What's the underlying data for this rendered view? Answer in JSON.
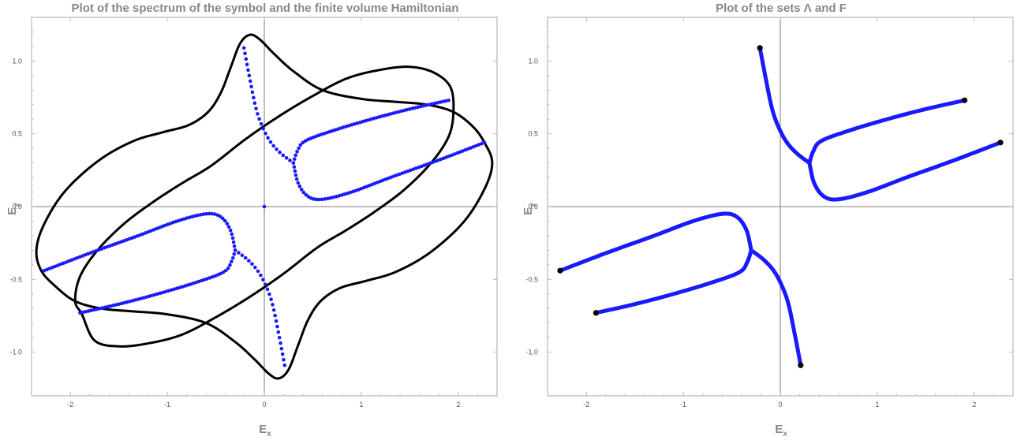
{
  "chart_data": [
    {
      "type": "scatter",
      "title": "Plot of the spectrum of the symbol and the finite volume Hamiltonian",
      "xlabel": "E",
      "xlabel_sub": "x",
      "ylabel": "E",
      "ylabel_sub": "y",
      "xlim": [
        -2.4,
        2.4
      ],
      "ylim": [
        -1.3,
        1.3
      ],
      "xticks": [
        {
          "v": -2,
          "label": "-2"
        },
        {
          "v": -1,
          "label": "-1"
        },
        {
          "v": 0,
          "label": "0"
        },
        {
          "v": 1,
          "label": "1"
        },
        {
          "v": 2,
          "label": "2"
        }
      ],
      "yticks": [
        {
          "v": -1,
          "label": "-1.0"
        },
        {
          "v": -0.5,
          "label": "-0.5"
        },
        {
          "v": 0,
          "label": "0.0"
        },
        {
          "v": 0.5,
          "label": "0.5"
        },
        {
          "v": 1,
          "label": "1.0"
        }
      ],
      "grid": false,
      "colors": {
        "curve": "#000000",
        "points": "#1a1aff"
      },
      "symbol_curve": {
        "description_note": "closed curve, spectrum of the symbol",
        "points": [
          [
            2.27,
            0.44
          ],
          [
            2.15,
            0.55
          ],
          [
            1.95,
            0.65
          ],
          [
            1.68,
            0.7
          ],
          [
            1.35,
            0.72
          ],
          [
            1.0,
            0.74
          ],
          [
            0.6,
            0.8
          ],
          [
            0.3,
            0.93
          ],
          [
            0.1,
            1.05
          ],
          [
            -0.05,
            1.15
          ],
          [
            -0.15,
            1.18
          ],
          [
            -0.25,
            1.12
          ],
          [
            -0.35,
            0.95
          ],
          [
            -0.45,
            0.78
          ],
          [
            -0.58,
            0.65
          ],
          [
            -0.78,
            0.56
          ],
          [
            -1.05,
            0.51
          ],
          [
            -1.35,
            0.45
          ],
          [
            -1.7,
            0.32
          ],
          [
            -2.05,
            0.11
          ],
          [
            -2.27,
            -0.12
          ],
          [
            -2.35,
            -0.3
          ],
          [
            -2.3,
            -0.44
          ],
          [
            -2.15,
            -0.55
          ],
          [
            -1.95,
            -0.65
          ],
          [
            -1.68,
            -0.7
          ],
          [
            -1.35,
            -0.72
          ],
          [
            -1.0,
            -0.74
          ],
          [
            -0.6,
            -0.8
          ],
          [
            -0.3,
            -0.93
          ],
          [
            -0.1,
            -1.05
          ],
          [
            0.05,
            -1.15
          ],
          [
            0.15,
            -1.18
          ],
          [
            0.25,
            -1.12
          ],
          [
            0.35,
            -0.95
          ],
          [
            0.45,
            -0.78
          ],
          [
            0.58,
            -0.65
          ],
          [
            0.78,
            -0.56
          ],
          [
            1.05,
            -0.51
          ],
          [
            1.35,
            -0.45
          ],
          [
            1.7,
            -0.32
          ],
          [
            2.05,
            -0.11
          ],
          [
            2.27,
            0.12
          ],
          [
            2.35,
            0.3
          ],
          [
            2.27,
            0.44
          ]
        ]
      },
      "hamiltonian_curve": {
        "description_note": "closed curve, finite volume Hamiltonian",
        "points": [
          [
            -1.88,
            -0.74
          ],
          [
            -1.95,
            -0.65
          ],
          [
            -1.9,
            -0.48
          ],
          [
            -1.72,
            -0.3
          ],
          [
            -1.45,
            -0.12
          ],
          [
            -1.15,
            0.03
          ],
          [
            -0.85,
            0.16
          ],
          [
            -0.55,
            0.28
          ],
          [
            -0.2,
            0.46
          ],
          [
            0.15,
            0.62
          ],
          [
            0.5,
            0.76
          ],
          [
            0.85,
            0.88
          ],
          [
            1.2,
            0.94
          ],
          [
            1.5,
            0.96
          ],
          [
            1.75,
            0.92
          ],
          [
            1.92,
            0.82
          ],
          [
            1.95,
            0.65
          ],
          [
            1.9,
            0.48
          ],
          [
            1.72,
            0.3
          ],
          [
            1.45,
            0.12
          ],
          [
            1.15,
            -0.03
          ],
          [
            0.85,
            -0.16
          ],
          [
            0.55,
            -0.28
          ],
          [
            0.2,
            -0.46
          ],
          [
            -0.15,
            -0.62
          ],
          [
            -0.5,
            -0.76
          ],
          [
            -0.85,
            -0.88
          ],
          [
            -1.2,
            -0.94
          ],
          [
            -1.5,
            -0.96
          ],
          [
            -1.75,
            -0.92
          ],
          [
            -1.88,
            -0.74
          ]
        ]
      },
      "spectrum_points": {
        "branches": [
          [
            [
              -0.21,
              1.09
            ],
            [
              -0.15,
              0.88
            ],
            [
              -0.08,
              0.66
            ],
            [
              0.0,
              0.52
            ],
            [
              0.08,
              0.43
            ],
            [
              0.18,
              0.36
            ],
            [
              0.3,
              0.3
            ]
          ],
          [
            [
              0.3,
              0.3
            ],
            [
              0.34,
              0.38
            ],
            [
              0.42,
              0.45
            ],
            [
              0.7,
              0.52
            ],
            [
              1.1,
              0.6
            ],
            [
              1.5,
              0.67
            ],
            [
              1.9,
              0.73
            ]
          ],
          [
            [
              0.3,
              0.3
            ],
            [
              0.35,
              0.16
            ],
            [
              0.45,
              0.07
            ],
            [
              0.6,
              0.05
            ],
            [
              0.9,
              0.1
            ],
            [
              1.3,
              0.2
            ],
            [
              1.8,
              0.32
            ],
            [
              2.27,
              0.44
            ]
          ],
          [
            [
              0.21,
              -1.09
            ],
            [
              0.15,
              -0.88
            ],
            [
              0.08,
              -0.66
            ],
            [
              0.0,
              -0.52
            ],
            [
              -0.08,
              -0.43
            ],
            [
              -0.18,
              -0.36
            ],
            [
              -0.3,
              -0.3
            ]
          ],
          [
            [
              -0.3,
              -0.3
            ],
            [
              -0.34,
              -0.38
            ],
            [
              -0.42,
              -0.45
            ],
            [
              -0.7,
              -0.52
            ],
            [
              -1.1,
              -0.6
            ],
            [
              -1.5,
              -0.67
            ],
            [
              -1.9,
              -0.73
            ]
          ],
          [
            [
              -0.3,
              -0.3
            ],
            [
              -0.35,
              -0.16
            ],
            [
              -0.45,
              -0.07
            ],
            [
              -0.6,
              -0.05
            ],
            [
              -0.9,
              -0.1
            ],
            [
              -1.3,
              -0.2
            ],
            [
              -1.8,
              -0.32
            ],
            [
              -2.27,
              -0.44
            ]
          ]
        ],
        "isolated": [
          [
            0.0,
            0.0
          ]
        ]
      }
    },
    {
      "type": "line",
      "title": "Plot of the sets Λ and F",
      "xlabel": "E",
      "xlabel_sub": "x",
      "ylabel": "E",
      "ylabel_sub": "y",
      "xlim": [
        -2.4,
        2.4
      ],
      "ylim": [
        -1.3,
        1.3
      ],
      "xticks": [
        {
          "v": -2,
          "label": "-2"
        },
        {
          "v": -1,
          "label": "-1"
        },
        {
          "v": 0,
          "label": "0"
        },
        {
          "v": 1,
          "label": "1"
        },
        {
          "v": 2,
          "label": "2"
        }
      ],
      "yticks": [
        {
          "v": -1,
          "label": "-1.0"
        },
        {
          "v": -0.5,
          "label": "-0.5"
        },
        {
          "v": 0,
          "label": "0.0"
        },
        {
          "v": 0.5,
          "label": "0.5"
        },
        {
          "v": 1,
          "label": "1.0"
        }
      ],
      "grid": false,
      "colors": {
        "lambda": "#1a1aff",
        "f_points": "#000000"
      },
      "lambda_branches": [
        [
          [
            -0.21,
            1.09
          ],
          [
            -0.15,
            0.88
          ],
          [
            -0.08,
            0.66
          ],
          [
            0.0,
            0.52
          ],
          [
            0.08,
            0.43
          ],
          [
            0.18,
            0.36
          ],
          [
            0.3,
            0.3
          ]
        ],
        [
          [
            0.3,
            0.3
          ],
          [
            0.34,
            0.38
          ],
          [
            0.42,
            0.45
          ],
          [
            0.7,
            0.52
          ],
          [
            1.1,
            0.6
          ],
          [
            1.5,
            0.67
          ],
          [
            1.9,
            0.73
          ]
        ],
        [
          [
            0.3,
            0.3
          ],
          [
            0.35,
            0.16
          ],
          [
            0.45,
            0.07
          ],
          [
            0.6,
            0.05
          ],
          [
            0.9,
            0.1
          ],
          [
            1.3,
            0.2
          ],
          [
            1.8,
            0.32
          ],
          [
            2.27,
            0.44
          ]
        ],
        [
          [
            0.21,
            -1.09
          ],
          [
            0.15,
            -0.88
          ],
          [
            0.08,
            -0.66
          ],
          [
            0.0,
            -0.52
          ],
          [
            -0.08,
            -0.43
          ],
          [
            -0.18,
            -0.36
          ],
          [
            -0.3,
            -0.3
          ]
        ],
        [
          [
            -0.3,
            -0.3
          ],
          [
            -0.34,
            -0.38
          ],
          [
            -0.42,
            -0.45
          ],
          [
            -0.7,
            -0.52
          ],
          [
            -1.1,
            -0.6
          ],
          [
            -1.5,
            -0.67
          ],
          [
            -1.9,
            -0.73
          ]
        ],
        [
          [
            -0.3,
            -0.3
          ],
          [
            -0.35,
            -0.16
          ],
          [
            -0.45,
            -0.07
          ],
          [
            -0.6,
            -0.05
          ],
          [
            -0.9,
            -0.1
          ],
          [
            -1.3,
            -0.2
          ],
          [
            -1.8,
            -0.32
          ],
          [
            -2.27,
            -0.44
          ]
        ]
      ],
      "f_points": [
        [
          -0.21,
          1.09
        ],
        [
          1.9,
          0.73
        ],
        [
          2.27,
          0.44
        ],
        [
          0.21,
          -1.09
        ],
        [
          -1.9,
          -0.73
        ],
        [
          -2.27,
          -0.44
        ]
      ]
    }
  ]
}
